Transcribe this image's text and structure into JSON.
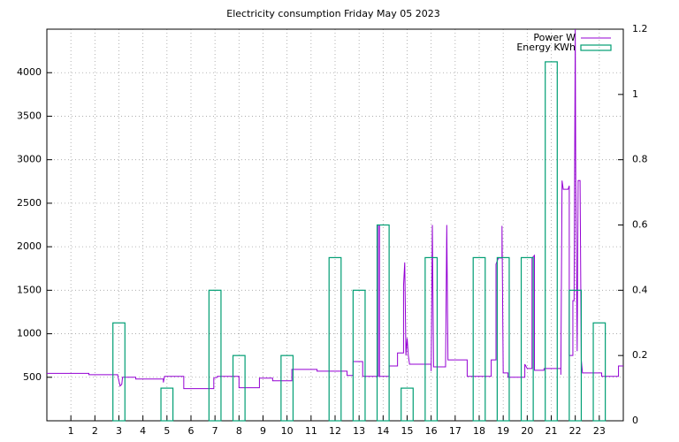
{
  "chart_data": {
    "type": "line",
    "title": "Electricity consumption Friday May 05 2023",
    "xlim": [
      0,
      24
    ],
    "xticks": [
      1,
      2,
      3,
      4,
      5,
      6,
      7,
      8,
      9,
      10,
      11,
      12,
      13,
      14,
      15,
      16,
      17,
      18,
      19,
      20,
      21,
      22,
      23
    ],
    "ylim": [
      0,
      4500
    ],
    "yticks": [
      500,
      1000,
      1500,
      2000,
      2500,
      3000,
      3500,
      4000
    ],
    "y2lim": [
      0,
      1.2
    ],
    "y2ticks": [
      0,
      0.2,
      0.4,
      0.6,
      0.8,
      1,
      1.2
    ],
    "grid": true,
    "legend": "top-right",
    "series": [
      {
        "name": "Power W",
        "color": "#9400d3",
        "x": [
          0,
          1.75,
          1.75,
          2.95,
          2.95,
          3.05,
          3.12,
          3.15,
          3.7,
          3.7,
          4.85,
          4.85,
          4.9,
          5.7,
          5.7,
          6.95,
          6.95,
          7.1,
          7.1,
          8.0,
          8.0,
          8.85,
          8.85,
          9.4,
          9.4,
          10.2,
          10.2,
          11.25,
          11.25,
          12.5,
          12.5,
          12.75,
          12.75,
          13.15,
          13.15,
          13.8,
          13.8,
          13.85,
          13.85,
          14.25,
          14.25,
          14.6,
          14.6,
          14.85,
          14.85,
          14.9,
          14.95,
          15.0,
          15.05,
          15.1,
          16.0,
          16.0,
          16.05,
          16.1,
          16.6,
          16.65,
          16.7,
          17.5,
          17.5,
          18.5,
          18.5,
          18.7,
          18.7,
          18.8,
          18.95,
          18.95,
          19.0,
          19.2,
          19.2,
          19.9,
          19.9,
          20.0,
          20.2,
          20.2,
          20.3,
          20.3,
          20.7,
          20.7,
          21.4,
          21.4,
          21.45,
          21.5,
          21.7,
          21.75,
          21.75,
          21.9,
          21.9,
          21.95,
          22.0,
          22.02,
          22.08,
          22.12,
          22.2,
          22.25,
          22.3,
          23.1,
          23.1,
          23.8,
          23.8,
          24
        ],
        "values": [
          545,
          545,
          530,
          530,
          520,
          400,
          420,
          500,
          500,
          480,
          480,
          440,
          510,
          510,
          370,
          370,
          490,
          500,
          510,
          510,
          380,
          380,
          490,
          490,
          460,
          460,
          590,
          590,
          570,
          570,
          520,
          520,
          680,
          680,
          510,
          510,
          2250,
          2250,
          510,
          510,
          630,
          630,
          780,
          780,
          1550,
          1820,
          750,
          950,
          750,
          650,
          650,
          570,
          2250,
          620,
          620,
          2250,
          700,
          700,
          510,
          510,
          700,
          700,
          1800,
          1870,
          1870,
          2240,
          550,
          550,
          500,
          500,
          650,
          600,
          600,
          1870,
          1900,
          580,
          580,
          600,
          600,
          530,
          2760,
          2660,
          2660,
          2700,
          750,
          750,
          1380,
          1380,
          4500,
          2800,
          800,
          2760,
          2760,
          700,
          550,
          550,
          510,
          510,
          630,
          630
        ]
      },
      {
        "name": "Energy KWh",
        "color": "#009e73",
        "axis": "y2",
        "x": [
          3,
          5,
          7,
          8,
          10,
          12,
          13,
          14,
          15,
          16,
          18,
          19,
          20,
          21,
          22,
          23
        ],
        "values": [
          0.3,
          0.1,
          0.4,
          0.2,
          0.2,
          0.5,
          0.4,
          0.6,
          0.1,
          0.5,
          0.5,
          0.5,
          0.5,
          1.1,
          0.4,
          0.3
        ]
      }
    ]
  }
}
